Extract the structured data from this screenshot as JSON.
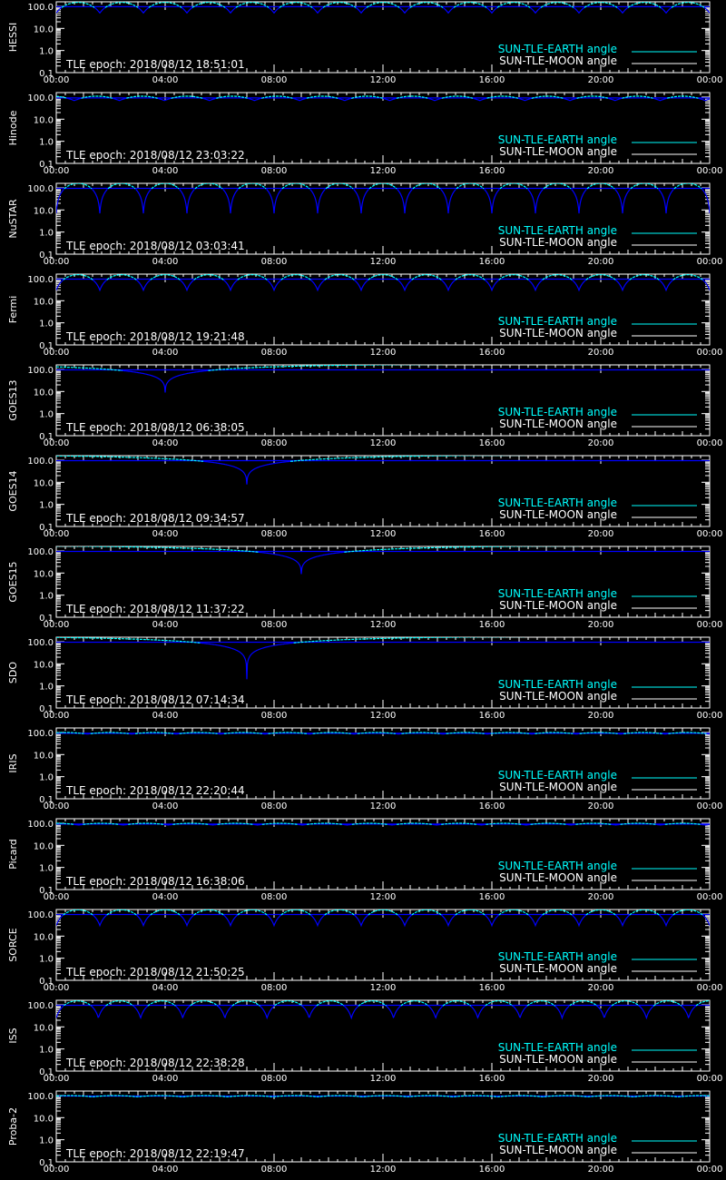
{
  "x_tick_labels": [
    "00:00",
    "04:00",
    "08:00",
    "12:00",
    "16:00",
    "20:00",
    "00:00"
  ],
  "y_tick_labels": [
    "100.0",
    "10.0",
    "1.0",
    "0.1"
  ],
  "legend": {
    "earth_label": "SUN-TLE-EARTH angle",
    "moon_label": "SUN-TLE-MOON angle"
  },
  "colors": {
    "background": "#000000",
    "axes": "#ffffff",
    "earth": "#00ffff",
    "moon": "#ffffff",
    "curve_low": "#0000ff"
  },
  "chart_data": [
    {
      "type": "line",
      "panel_label": "HESSI",
      "tle_label": "TLE epoch: 2018/08/12 18:51:01",
      "x_range_hours": [
        0,
        24
      ],
      "ylim": [
        0.1,
        160
      ],
      "y_scale": "log",
      "pattern": "orbital",
      "orbits": 15.0,
      "phase": 0.0,
      "max_deg": 150,
      "min_deg": 50,
      "moon_deg": 96,
      "legend_position": "bottom-right"
    },
    {
      "type": "line",
      "panel_label": "Hinode",
      "tle_label": "TLE epoch: 2018/08/12 23:03:22",
      "x_range_hours": [
        0,
        24
      ],
      "ylim": [
        0.1,
        160
      ],
      "y_scale": "log",
      "pattern": "orbital",
      "orbits": 14.5,
      "phase": 0.6,
      "max_deg": 110,
      "min_deg": 70,
      "moon_deg": 92,
      "legend_position": "bottom-right"
    },
    {
      "type": "line",
      "panel_label": "NuSTAR",
      "tle_label": "TLE epoch: 2018/08/12 03:03:41",
      "x_range_hours": [
        0,
        24
      ],
      "ylim": [
        0.1,
        160
      ],
      "y_scale": "log",
      "pattern": "orbital",
      "orbits": 15.0,
      "phase": 0.0,
      "max_deg": 160,
      "min_deg": 7,
      "moon_deg": 95,
      "legend_position": "bottom-right"
    },
    {
      "type": "line",
      "panel_label": "Fermi",
      "tle_label": "TLE epoch: 2018/08/12 19:21:48",
      "x_range_hours": [
        0,
        24
      ],
      "ylim": [
        0.1,
        160
      ],
      "y_scale": "log",
      "pattern": "orbital",
      "orbits": 15.0,
      "phase": 0.0,
      "max_deg": 150,
      "min_deg": 30,
      "moon_deg": 95,
      "legend_position": "bottom-right"
    },
    {
      "type": "line",
      "panel_label": "GOES13",
      "tle_label": "TLE epoch: 2018/08/12 06:38:05",
      "x_range_hours": [
        0,
        24
      ],
      "ylim": [
        0.1,
        160
      ],
      "y_scale": "log",
      "pattern": "geo",
      "dip_hour": 4.0,
      "min_deg": 9,
      "max_deg": 170,
      "moon_deg": 95,
      "legend_position": "bottom-right"
    },
    {
      "type": "line",
      "panel_label": "GOES14",
      "tle_label": "TLE epoch: 2018/08/12 09:34:57",
      "x_range_hours": [
        0,
        24
      ],
      "ylim": [
        0.1,
        160
      ],
      "y_scale": "log",
      "pattern": "geo",
      "dip_hour": 7.0,
      "min_deg": 8,
      "max_deg": 170,
      "moon_deg": 95,
      "legend_position": "bottom-right"
    },
    {
      "type": "line",
      "panel_label": "GOES15",
      "tle_label": "TLE epoch: 2018/08/12 11:37:22",
      "x_range_hours": [
        0,
        24
      ],
      "ylim": [
        0.1,
        160
      ],
      "y_scale": "log",
      "pattern": "geo",
      "dip_hour": 9.0,
      "min_deg": 9,
      "max_deg": 170,
      "moon_deg": 95,
      "legend_position": "bottom-right"
    },
    {
      "type": "line",
      "panel_label": "SDO",
      "tle_label": "TLE epoch: 2018/08/12 07:14:34",
      "x_range_hours": [
        0,
        24
      ],
      "ylim": [
        0.1,
        160
      ],
      "y_scale": "log",
      "pattern": "geo",
      "dip_hour": 7.0,
      "min_deg": 2,
      "max_deg": 170,
      "moon_deg": 95,
      "legend_position": "bottom-right"
    },
    {
      "type": "line",
      "panel_label": "IRIS",
      "tle_label": "TLE epoch: 2018/08/12 22:20:44",
      "x_range_hours": [
        0,
        24
      ],
      "ylim": [
        0.1,
        160
      ],
      "y_scale": "log",
      "pattern": "orbital",
      "orbits": 14.7,
      "phase": 0.3,
      "max_deg": 100,
      "min_deg": 85,
      "moon_deg": 92,
      "legend_position": "bottom-right"
    },
    {
      "type": "line",
      "panel_label": "Picard",
      "tle_label": "TLE epoch: 2018/08/12 16:38:06",
      "x_range_hours": [
        0,
        24
      ],
      "ylim": [
        0.1,
        160
      ],
      "y_scale": "log",
      "pattern": "orbital",
      "orbits": 14.6,
      "phase": 0.5,
      "max_deg": 100,
      "min_deg": 83,
      "moon_deg": 92,
      "legend_position": "bottom-right"
    },
    {
      "type": "line",
      "panel_label": "SORCE",
      "tle_label": "TLE epoch: 2018/08/12 21:50:25",
      "x_range_hours": [
        0,
        24
      ],
      "ylim": [
        0.1,
        160
      ],
      "y_scale": "log",
      "pattern": "orbital",
      "orbits": 15.0,
      "phase": 0.0,
      "max_deg": 155,
      "min_deg": 30,
      "moon_deg": 95,
      "legend_position": "bottom-right"
    },
    {
      "type": "line",
      "panel_label": "ISS",
      "tle_label": "TLE epoch: 2018/08/12 22:38:28",
      "x_range_hours": [
        0,
        24
      ],
      "ylim": [
        0.1,
        160
      ],
      "y_scale": "log",
      "pattern": "orbital",
      "orbits": 15.5,
      "phase": 0.0,
      "max_deg": 150,
      "min_deg": 25,
      "moon_deg": 95,
      "legend_position": "bottom-right"
    },
    {
      "type": "line",
      "panel_label": "Proba-2",
      "tle_label": "TLE epoch: 2018/08/12 22:19:47",
      "x_range_hours": [
        0,
        24
      ],
      "ylim": [
        0.1,
        160
      ],
      "y_scale": "log",
      "pattern": "orbital",
      "orbits": 14.5,
      "phase": 0.2,
      "max_deg": 100,
      "min_deg": 88,
      "moon_deg": 95,
      "legend_position": "bottom-right"
    }
  ]
}
